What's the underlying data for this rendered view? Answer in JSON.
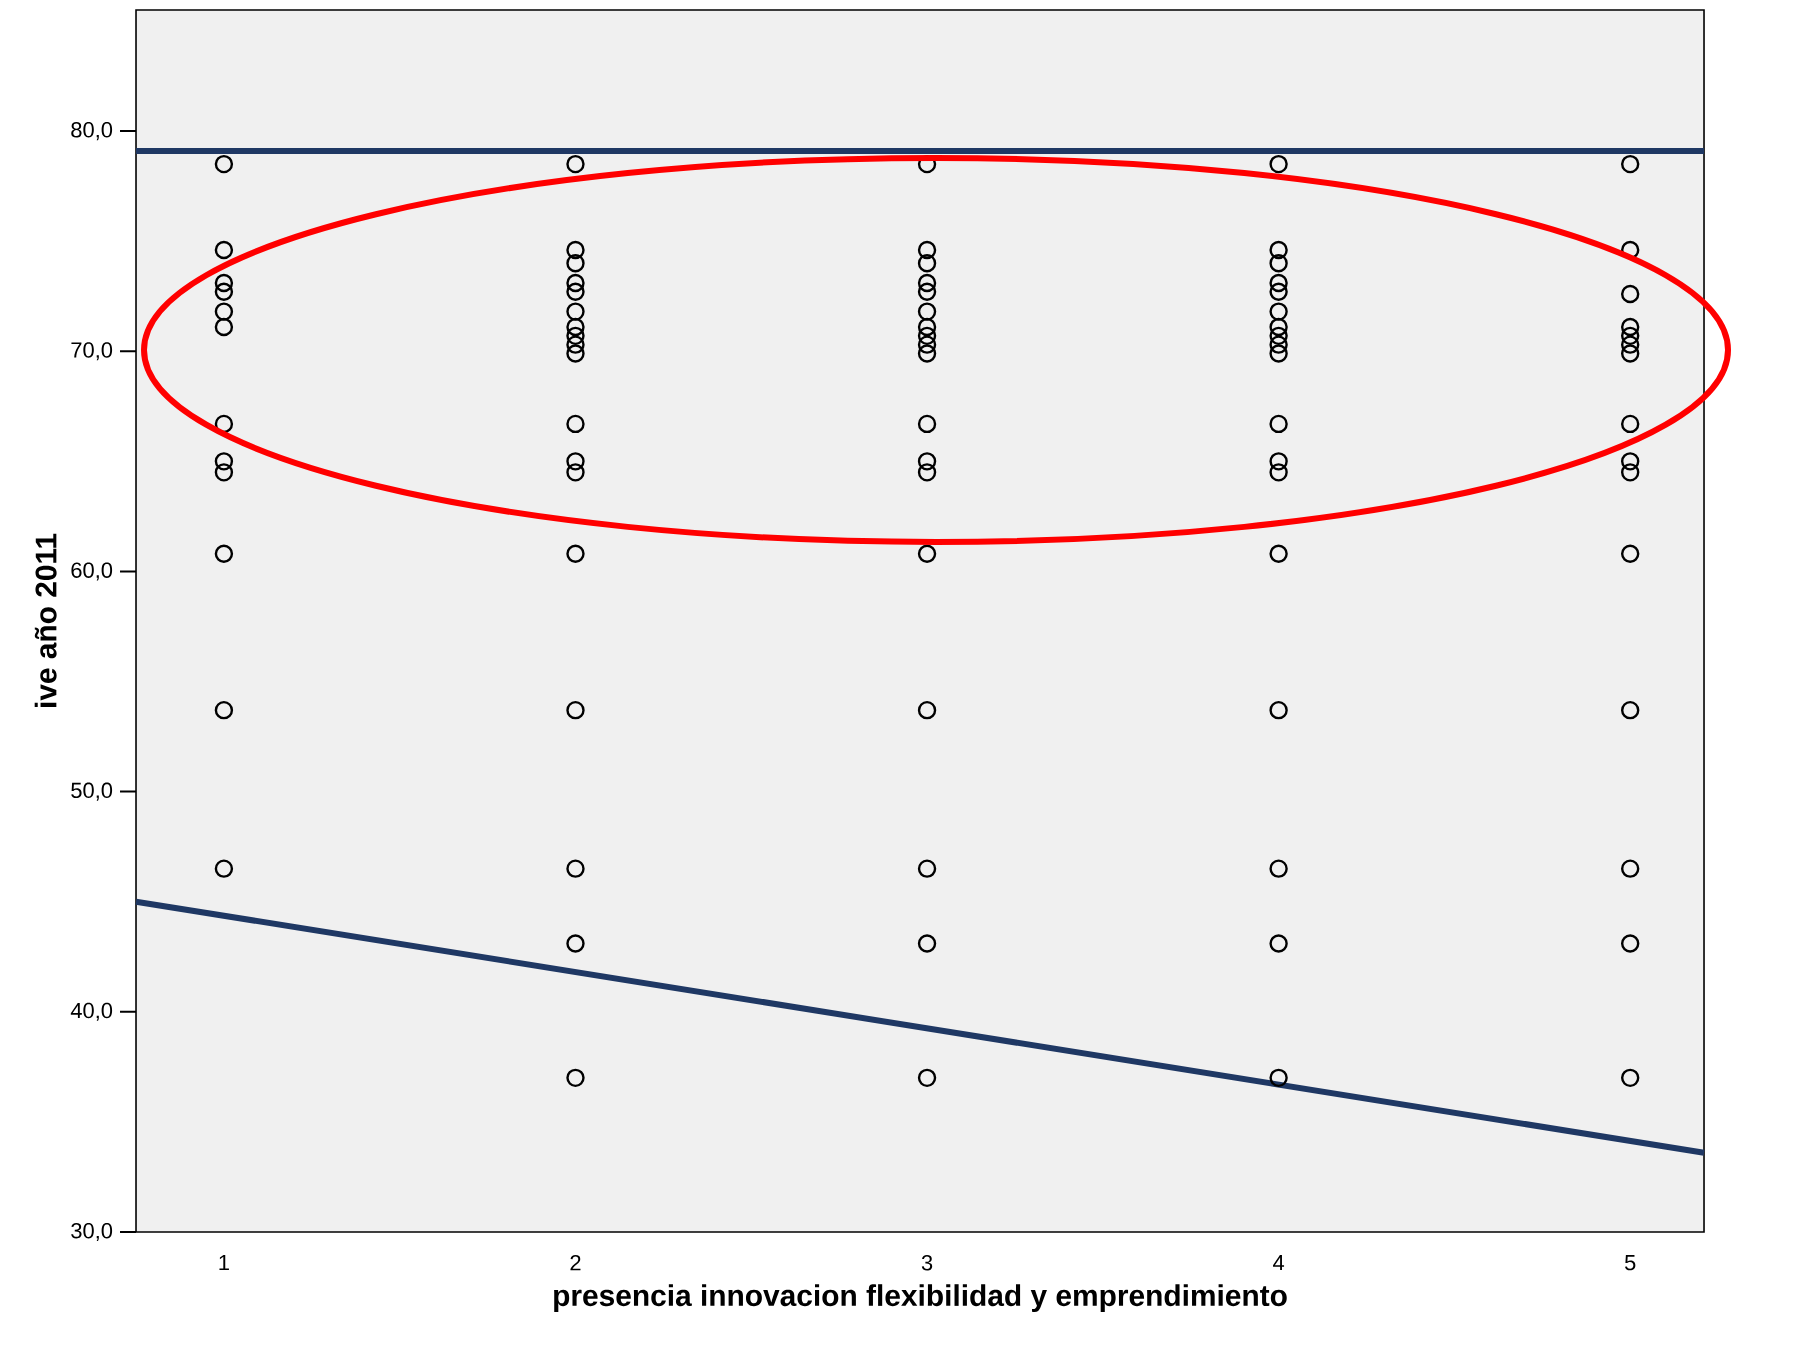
{
  "chart_data": {
    "type": "scatter",
    "xlabel": "presencia innovacion flexibilidad y emprendimiento",
    "ylabel": "ive año 2011",
    "xlim": [
      0.75,
      5.21
    ],
    "ylim": [
      30,
      85.5
    ],
    "xticks": [
      1,
      2,
      3,
      4,
      5
    ],
    "yticks": [
      {
        "value": 30,
        "label": "30,0"
      },
      {
        "value": 40,
        "label": "40,0"
      },
      {
        "value": 50,
        "label": "50,0"
      },
      {
        "value": 60,
        "label": "60,0"
      },
      {
        "value": 70,
        "label": "70,0"
      },
      {
        "value": 80,
        "label": "80,0"
      }
    ],
    "marker": "circle",
    "grid": false,
    "series": [
      {
        "color": "#000000",
        "x": [
          1,
          1,
          1,
          1,
          1,
          1,
          1,
          1,
          1,
          1,
          1,
          1,
          2,
          2,
          2,
          2,
          2,
          2,
          2,
          2,
          2,
          2,
          2,
          2,
          2,
          2,
          2,
          2,
          2,
          2,
          3,
          3,
          3,
          3,
          3,
          3,
          3,
          3,
          3,
          3,
          3,
          3,
          3,
          3,
          3,
          3,
          3,
          3,
          4,
          4,
          4,
          4,
          4,
          4,
          4,
          4,
          4,
          4,
          4,
          4,
          4,
          4,
          4,
          4,
          4,
          4,
          5,
          5,
          5,
          5,
          5,
          5,
          5,
          5,
          5,
          5,
          5,
          5,
          5,
          5,
          5
        ],
        "values": [
          78.5,
          74.6,
          73.1,
          72.7,
          71.8,
          71.1,
          66.7,
          65.0,
          64.5,
          60.8,
          53.7,
          46.5,
          78.5,
          74.6,
          74.0,
          73.1,
          72.7,
          71.8,
          71.1,
          70.7,
          70.3,
          69.9,
          66.7,
          65.0,
          64.5,
          60.8,
          53.7,
          46.5,
          43.1,
          37.0,
          78.5,
          74.6,
          74.0,
          73.1,
          72.7,
          71.8,
          71.1,
          70.7,
          70.3,
          69.9,
          66.7,
          65.0,
          64.5,
          60.8,
          53.7,
          46.5,
          43.1,
          37.0,
          78.5,
          74.6,
          74.0,
          73.1,
          72.7,
          71.8,
          71.1,
          70.7,
          70.3,
          69.9,
          66.7,
          65.0,
          64.5,
          60.8,
          53.7,
          46.5,
          43.1,
          37.0,
          78.5,
          74.6,
          72.6,
          71.1,
          70.7,
          70.3,
          69.9,
          66.7,
          65.0,
          64.5,
          60.8,
          53.7,
          46.5,
          43.1,
          37.0
        ]
      },
      {
        "type": "line",
        "marker": "none",
        "color": "#1f3864",
        "x": [
          0.75,
          5.21
        ],
        "values": [
          45.0,
          33.6
        ]
      }
    ],
    "ref_lines": [
      {
        "axis": "y",
        "value": 79.1,
        "color": "#1f3864"
      }
    ]
  }
}
